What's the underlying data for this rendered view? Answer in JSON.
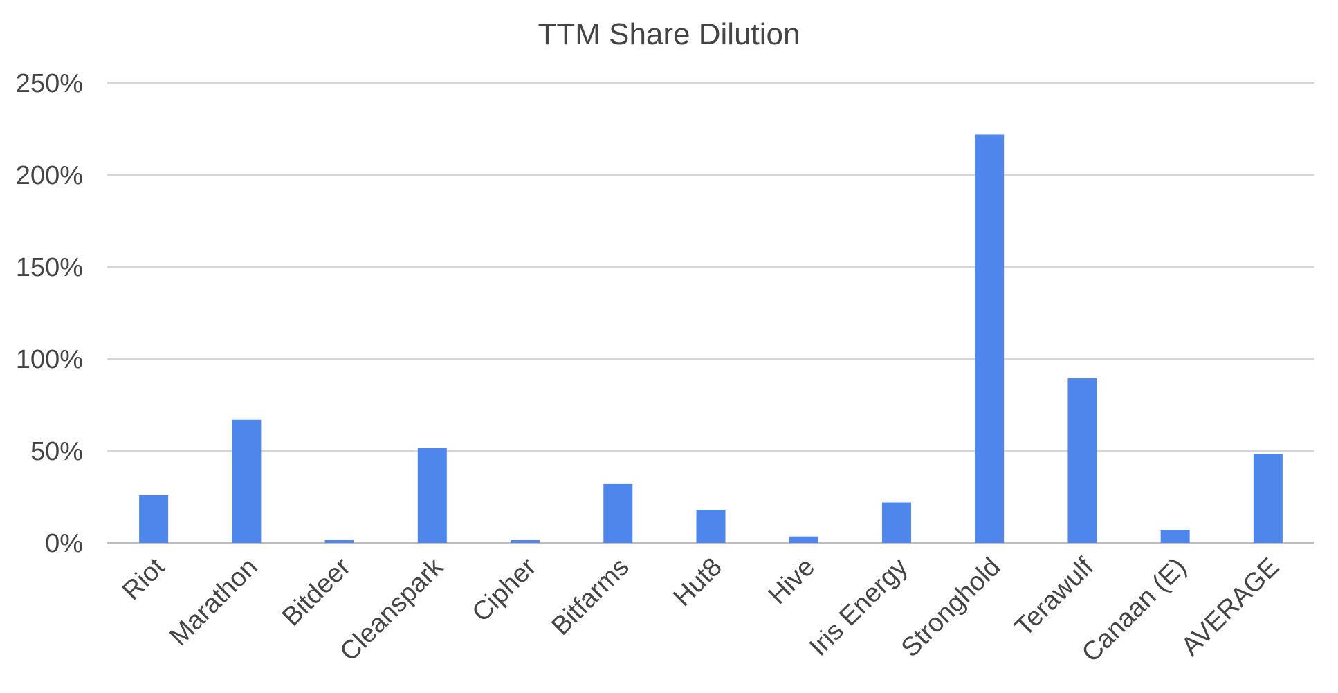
{
  "chart_data": {
    "type": "bar",
    "title": "TTM Share Dilution",
    "xlabel": "",
    "ylabel": "",
    "categories": [
      "Riot",
      "Marathon",
      "Bitdeer",
      "Cleanspark",
      "Cipher",
      "Bitfarms",
      "Hut8",
      "Hive",
      "Iris Energy",
      "Stronghold",
      "Terawulf",
      "Canaan (E)",
      "AVERAGE"
    ],
    "series": [
      {
        "values": [
          26,
          67,
          1.5,
          51.5,
          1.5,
          32,
          18,
          3.5,
          22,
          222,
          89.5,
          7,
          48.5
        ]
      }
    ],
    "ylim": [
      0,
      250
    ],
    "yticks": [
      "0%",
      "50%",
      "100%",
      "150%",
      "200%",
      "250%"
    ],
    "grid": true,
    "legend": "none",
    "colors": {
      "bar": "#4f86ec",
      "grid": "#d6d6d6",
      "text": "#444444"
    }
  }
}
